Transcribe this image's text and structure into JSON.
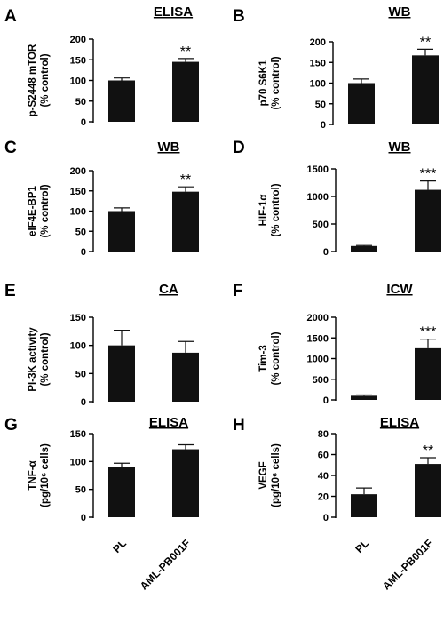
{
  "chart_data": [
    {
      "panel": "A",
      "title": "ELISA",
      "type": "bar",
      "ylabel": [
        "p-S2448 mTOR",
        "(% control)"
      ],
      "yticks": [
        0,
        50,
        100,
        150,
        200
      ],
      "ylim": [
        0,
        200
      ],
      "categories": [
        "PL",
        "AML-PB001F"
      ],
      "values": [
        100,
        145
      ],
      "errors": [
        6,
        8
      ],
      "significance": [
        "",
        "**"
      ]
    },
    {
      "panel": "B",
      "title": "WB",
      "type": "bar",
      "ylabel": [
        "p70 S6K1",
        "(% control)"
      ],
      "yticks": [
        0,
        50,
        100,
        150,
        200
      ],
      "ylim": [
        0,
        200
      ],
      "categories": [
        "PL",
        "AML-PB001F"
      ],
      "values": [
        100,
        167
      ],
      "errors": [
        10,
        15
      ],
      "significance": [
        "",
        "**"
      ]
    },
    {
      "panel": "C",
      "title": "WB",
      "type": "bar",
      "ylabel": [
        "eIF4E-BP1",
        "(% control)"
      ],
      "yticks": [
        0,
        50,
        100,
        150,
        200
      ],
      "ylim": [
        0,
        200
      ],
      "categories": [
        "PL",
        "AML-PB001F"
      ],
      "values": [
        100,
        148
      ],
      "errors": [
        8,
        12
      ],
      "significance": [
        "",
        "**"
      ]
    },
    {
      "panel": "D",
      "title": "WB",
      "type": "bar",
      "ylabel": [
        "HIF-1α",
        "(% control)"
      ],
      "yticks": [
        0,
        500,
        1000,
        1500
      ],
      "ylim": [
        0,
        1500
      ],
      "categories": [
        "PL",
        "AML-PB001F"
      ],
      "values": [
        100,
        1120
      ],
      "errors": [
        10,
        160
      ],
      "significance": [
        "",
        "***"
      ]
    },
    {
      "panel": "E",
      "title": "CA",
      "type": "bar",
      "ylabel": [
        "PI-3K activity",
        "(% control)"
      ],
      "yticks": [
        0,
        50,
        100,
        150
      ],
      "ylim": [
        0,
        150
      ],
      "categories": [
        "PL",
        "AML-PB001F"
      ],
      "values": [
        100,
        87
      ],
      "errors": [
        27,
        20
      ],
      "significance": [
        "",
        ""
      ]
    },
    {
      "panel": "F",
      "title": "ICW",
      "type": "bar",
      "ylabel": [
        "Tim-3",
        "(% control)"
      ],
      "yticks": [
        0,
        500,
        1000,
        1500,
        2000
      ],
      "ylim": [
        0,
        2000
      ],
      "categories": [
        "PL",
        "AML-PB001F"
      ],
      "values": [
        100,
        1250
      ],
      "errors": [
        20,
        220
      ],
      "significance": [
        "",
        "***"
      ]
    },
    {
      "panel": "G",
      "title": "ELISA",
      "type": "bar",
      "ylabel": [
        "TNF-α",
        "(pg/10⁶ cells)"
      ],
      "yticks": [
        0,
        50,
        100,
        150
      ],
      "ylim": [
        0,
        150
      ],
      "categories": [
        "PL",
        "AML-PB001F"
      ],
      "values": [
        90,
        122
      ],
      "errors": [
        7,
        8
      ],
      "significance": [
        "",
        ""
      ]
    },
    {
      "panel": "H",
      "title": "ELISA",
      "type": "bar",
      "ylabel": [
        "VEGF",
        "(pg/10⁶ cells)"
      ],
      "yticks": [
        0,
        20,
        40,
        60,
        80
      ],
      "ylim": [
        0,
        80
      ],
      "categories": [
        "PL",
        "AML-PB001F"
      ],
      "values": [
        22,
        51
      ],
      "errors": [
        6,
        6
      ],
      "significance": [
        "",
        "**"
      ]
    }
  ],
  "bottom_labels": [
    "PL",
    "AML-PB001F"
  ]
}
